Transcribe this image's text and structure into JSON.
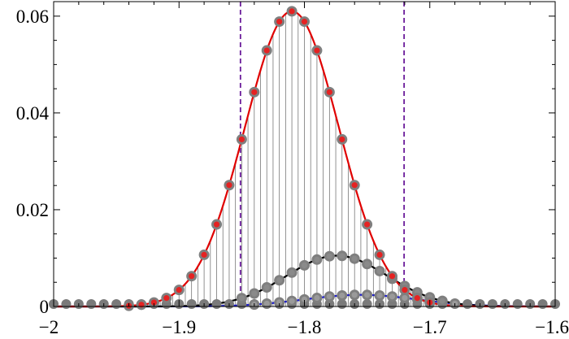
{
  "chart_data": {
    "type": "line",
    "title": "",
    "xlabel": "",
    "ylabel": "",
    "xlim": [
      -2.0,
      -1.6
    ],
    "ylim": [
      0,
      0.063
    ],
    "grid": false,
    "legend": "none",
    "x_ticks": [
      -2.0,
      -1.9,
      -1.8,
      -1.7,
      -1.6
    ],
    "x_tick_labels": [
      "−2",
      "−1.9",
      "−1.8",
      "−1.7",
      "−1.6"
    ],
    "y_ticks": [
      0,
      0.02,
      0.04,
      0.06
    ],
    "y_tick_labels": [
      "0",
      "0.02",
      "0.04",
      "0.06"
    ],
    "vertical_lines": [
      {
        "x": -1.851,
        "color": "#6a1b9a",
        "style": "dashed"
      },
      {
        "x": -1.7205,
        "color": "#6a1b9a",
        "style": "dashed"
      }
    ],
    "sample_x": [
      -2.0,
      -1.99,
      -1.98,
      -1.97,
      -1.96,
      -1.95,
      -1.94,
      -1.93,
      -1.92,
      -1.91,
      -1.9,
      -1.89,
      -1.88,
      -1.87,
      -1.86,
      -1.85,
      -1.84,
      -1.83,
      -1.82,
      -1.81,
      -1.8,
      -1.79,
      -1.78,
      -1.77,
      -1.76,
      -1.75,
      -1.74,
      -1.73,
      -1.72,
      -1.71,
      -1.7,
      -1.69,
      -1.68,
      -1.67,
      -1.66,
      -1.65,
      -1.64,
      -1.63,
      -1.62,
      -1.61,
      -1.6
    ],
    "series": [
      {
        "color": "#e00000",
        "marker_color": "#e52222",
        "curve": "gaussian",
        "mu": -1.81,
        "sigma": 0.0375,
        "amplitude": 0.061,
        "markers_x": [
          -1.94,
          -1.93,
          -1.92,
          -1.91,
          -1.9,
          -1.89,
          -1.88,
          -1.87,
          -1.86,
          -1.85,
          -1.84,
          -1.83,
          -1.82,
          -1.81,
          -1.8,
          -1.79,
          -1.78,
          -1.77,
          -1.76,
          -1.75,
          -1.74,
          -1.73,
          -1.72,
          -1.71,
          -1.7
        ]
      },
      {
        "color": "#000000",
        "marker_color": "#8a8a8a",
        "curve": "gaussian",
        "mu": -1.774,
        "sigma": 0.04,
        "amplitude": 0.0105,
        "markers_x": [
          -1.85,
          -1.84,
          -1.83,
          -1.82,
          -1.81,
          -1.8,
          -1.79,
          -1.78,
          -1.77,
          -1.76,
          -1.75,
          -1.74,
          -1.73,
          -1.72,
          -1.71,
          -1.7,
          -1.69
        ]
      },
      {
        "color": "#1a1acc",
        "marker_color": "#9a9a9a",
        "curve": "gaussian",
        "mu": -1.755,
        "sigma": 0.045,
        "amplitude": 0.0024,
        "markers_x": [
          -1.84,
          -1.83,
          -1.82,
          -1.81,
          -1.8,
          -1.79,
          -1.78,
          -1.77,
          -1.76,
          -1.75,
          -1.74,
          -1.73,
          -1.72,
          -1.71,
          -1.7,
          -1.69,
          -1.68
        ]
      }
    ],
    "stem_data": {
      "color": "#777777",
      "marker_color": "#7a7a7a",
      "x_from": -2.0,
      "x_to": -1.6,
      "step": 0.005
    }
  }
}
